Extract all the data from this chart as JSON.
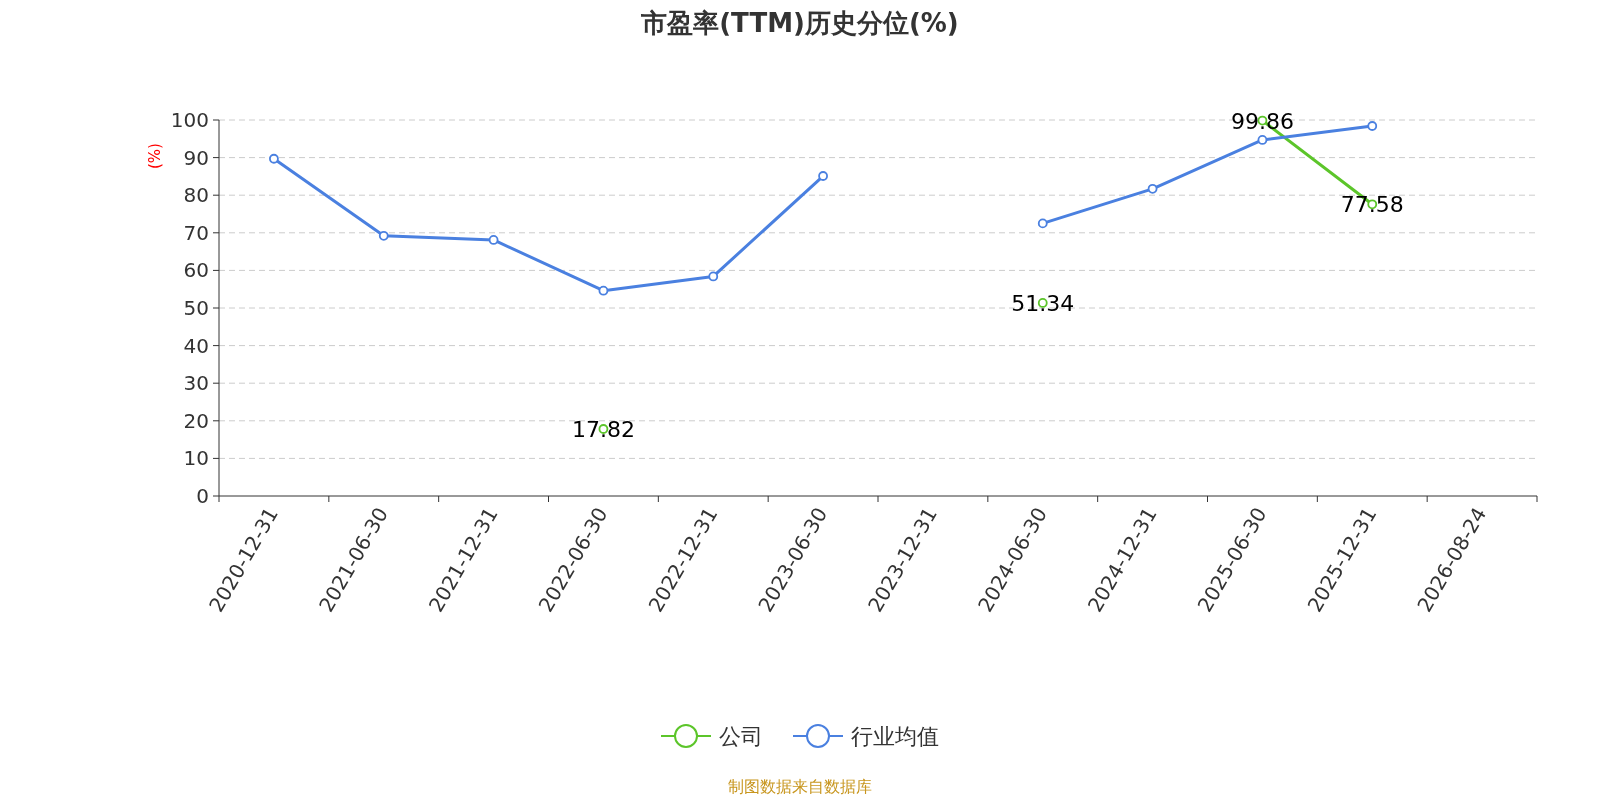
{
  "chart_data": {
    "type": "line",
    "title": "市盈率(TTM)历史分位(%)",
    "ylabel": "(%)",
    "categories": [
      "2020-12-31",
      "2021-06-30",
      "2021-12-31",
      "2022-06-30",
      "2022-12-31",
      "2023-06-30",
      "2023-12-31",
      "2024-06-30",
      "2024-12-31",
      "2025-06-30",
      "2025-12-31",
      "2026-08-24"
    ],
    "series": [
      {
        "name": "公司",
        "color": "#5cc52a",
        "values": [
          null,
          null,
          null,
          17.82,
          null,
          null,
          null,
          51.34,
          null,
          99.86,
          77.58,
          null
        ],
        "value_labels": [
          null,
          null,
          null,
          "17.82",
          null,
          null,
          null,
          "51.34",
          null,
          "99.86",
          "77.58",
          null
        ]
      },
      {
        "name": "行业均值",
        "color": "#4a80e0",
        "values": [
          89.7,
          69.2,
          68.1,
          54.6,
          58.4,
          85.1,
          null,
          72.5,
          81.7,
          94.7,
          98.4,
          null
        ]
      }
    ],
    "ylim": [
      0,
      100
    ],
    "yticks": [
      0,
      10,
      20,
      30,
      40,
      50,
      60,
      70,
      80,
      90,
      100
    ],
    "grid": "y",
    "legend": "bottom",
    "marker": "circle",
    "line_style": "solid",
    "annotations": [
      "制图数据来自数据库"
    ]
  }
}
